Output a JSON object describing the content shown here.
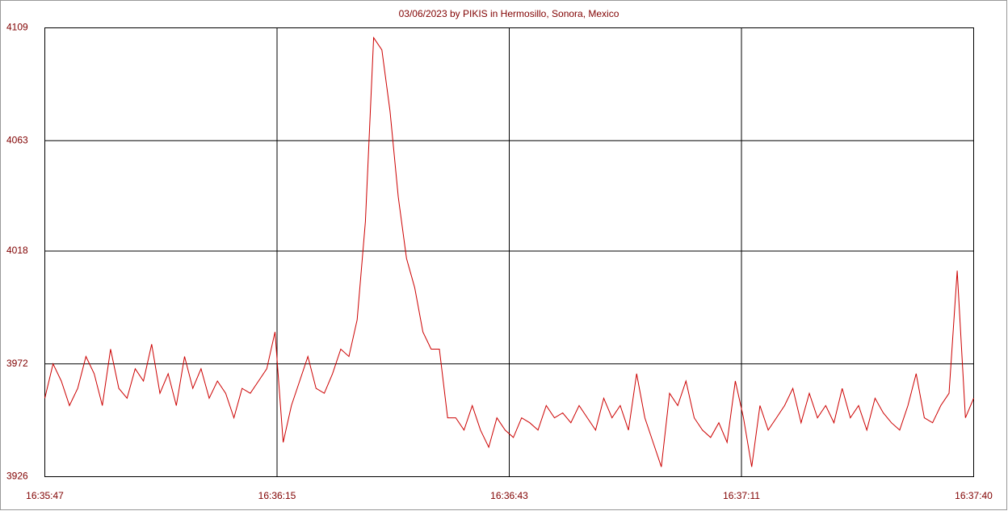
{
  "chart_data": {
    "type": "line",
    "title": "03/06/2023  by  PIKIS  in  Hermosillo, Sonora, Mexico",
    "x": [
      0,
      1,
      2,
      3,
      4,
      5,
      6,
      7,
      8,
      9,
      10,
      11,
      12,
      13,
      14,
      15,
      16,
      17,
      18,
      19,
      20,
      21,
      22,
      23,
      24,
      25,
      26,
      27,
      28,
      29,
      30,
      31,
      32,
      33,
      34,
      35,
      36,
      37,
      38,
      39,
      40,
      41,
      42,
      43,
      44,
      45,
      46,
      47,
      48,
      49,
      50,
      51,
      52,
      53,
      54,
      55,
      56,
      57,
      58,
      59,
      60,
      61,
      62,
      63,
      64,
      65,
      66,
      67,
      68,
      69,
      70,
      71,
      72,
      73,
      74,
      75,
      76,
      77,
      78,
      79,
      80,
      81,
      82,
      83,
      84,
      85,
      86,
      87,
      88,
      89,
      90,
      91,
      92,
      93,
      94,
      95,
      96,
      97,
      98,
      99,
      100,
      101,
      102,
      103,
      104,
      105,
      106,
      107,
      108,
      109,
      110,
      111,
      112,
      113
    ],
    "series": [
      {
        "color": "#cc0000",
        "values": [
          3958,
          3972,
          3965,
          3955,
          3962,
          3975,
          3968,
          3955,
          3978,
          3962,
          3958,
          3970,
          3965,
          3980,
          3960,
          3968,
          3955,
          3975,
          3962,
          3970,
          3958,
          3965,
          3960,
          3950,
          3962,
          3960,
          3965,
          3970,
          3985,
          3940,
          3955,
          3965,
          3975,
          3962,
          3960,
          3968,
          3978,
          3975,
          3990,
          4030,
          4105,
          4100,
          4075,
          4040,
          4015,
          4003,
          3985,
          3978,
          3978,
          3950,
          3950,
          3945,
          3955,
          3945,
          3938,
          3950,
          3945,
          3942,
          3950,
          3948,
          3945,
          3955,
          3950,
          3952,
          3948,
          3955,
          3950,
          3945,
          3958,
          3950,
          3955,
          3945,
          3968,
          3950,
          3940,
          3930,
          3960,
          3955,
          3965,
          3950,
          3945,
          3942,
          3948,
          3940,
          3965,
          3950,
          3930,
          3955,
          3945,
          3950,
          3955,
          3962,
          3948,
          3960,
          3950,
          3955,
          3948,
          3962,
          3950,
          3955,
          3945,
          3958,
          3952,
          3948,
          3945,
          3955,
          3968,
          3950,
          3948,
          3955,
          3960,
          4010,
          3950,
          3958
        ]
      }
    ],
    "xlim": [
      0,
      113
    ],
    "xticks": [
      {
        "value": 0,
        "label": "16:35:47"
      },
      {
        "value": 28.25,
        "label": "16:36:15"
      },
      {
        "value": 56.5,
        "label": "16:36:43"
      },
      {
        "value": 84.75,
        "label": "16:37:11"
      },
      {
        "value": 113,
        "label": "16:37:40"
      }
    ],
    "ylim": [
      3926,
      4109
    ],
    "yticks": [
      3926,
      3972,
      4018,
      4063,
      4109
    ],
    "grid": true
  }
}
